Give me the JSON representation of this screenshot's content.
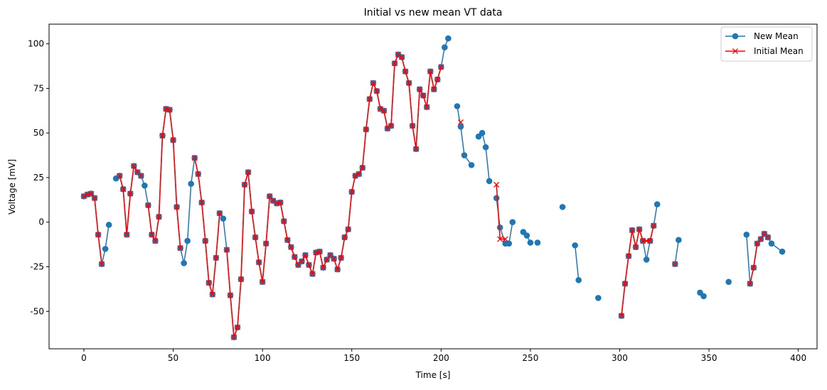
{
  "chart_data": {
    "type": "line",
    "title": "Initial vs new mean VT data",
    "xlabel": "Time [s]",
    "ylabel": "Voltage [mV]",
    "xlim": [
      -19.5,
      410.5
    ],
    "ylim": [
      -71,
      111
    ],
    "xticks": [
      0,
      50,
      100,
      150,
      200,
      250,
      300,
      350,
      400
    ],
    "yticks": [
      -50,
      -25,
      0,
      25,
      50,
      75,
      100
    ],
    "grid": false,
    "legend_position": "top-right",
    "series": [
      {
        "name": "New Mean",
        "color": "#1f77b4",
        "marker": "circle",
        "segments": [
          [
            [
              0,
              14.5
            ],
            [
              2,
              15.5
            ],
            [
              4,
              16
            ],
            [
              6,
              13.5
            ],
            [
              8,
              -7
            ],
            [
              10,
              -23.5
            ],
            [
              12,
              -15
            ],
            [
              14,
              -1.5
            ]
          ],
          [
            [
              18,
              24.5
            ],
            [
              20,
              26
            ],
            [
              22,
              18.5
            ],
            [
              24,
              -7
            ],
            [
              26,
              16
            ],
            [
              28,
              31.5
            ],
            [
              30,
              28
            ],
            [
              32,
              26
            ],
            [
              34,
              20.5
            ],
            [
              36,
              9.5
            ],
            [
              38,
              -7
            ],
            [
              40,
              -10.5
            ],
            [
              42,
              3
            ],
            [
              44,
              48.5
            ],
            [
              46,
              63.5
            ],
            [
              48,
              63
            ],
            [
              50,
              46
            ],
            [
              52,
              8.5
            ],
            [
              54,
              -14.5
            ],
            [
              56,
              -23
            ],
            [
              58,
              -10.5
            ],
            [
              60,
              21.5
            ],
            [
              62,
              36
            ],
            [
              64,
              27
            ],
            [
              66,
              11
            ],
            [
              68,
              -10.5
            ],
            [
              70,
              -34
            ],
            [
              72,
              -40.5
            ],
            [
              74,
              -20
            ],
            [
              76,
              5
            ],
            [
              78,
              2
            ],
            [
              80,
              -15.5
            ],
            [
              82,
              -41
            ],
            [
              84,
              -64.5
            ],
            [
              86,
              -59
            ],
            [
              88,
              -32
            ],
            [
              90,
              21
            ],
            [
              92,
              28
            ],
            [
              94,
              6
            ],
            [
              96,
              -8.5
            ],
            [
              98,
              -22.5
            ],
            [
              100,
              -33.5
            ],
            [
              102,
              -12
            ],
            [
              104,
              14.5
            ],
            [
              106,
              12
            ],
            [
              108,
              10.5
            ],
            [
              110,
              11
            ],
            [
              112,
              0.5
            ],
            [
              114,
              -10
            ],
            [
              116,
              -14
            ],
            [
              118,
              -19.5
            ],
            [
              120,
              -24
            ],
            [
              122,
              -22
            ],
            [
              124,
              -18.5
            ],
            [
              126,
              -24
            ],
            [
              128,
              -29
            ],
            [
              130,
              -17
            ],
            [
              132,
              -16.5
            ],
            [
              134,
              -25.5
            ],
            [
              136,
              -21
            ],
            [
              138,
              -18.5
            ],
            [
              140,
              -20.5
            ],
            [
              142,
              -26.5
            ],
            [
              144,
              -20
            ],
            [
              146,
              -8.5
            ],
            [
              148,
              -4
            ],
            [
              150,
              17
            ],
            [
              152,
              26
            ],
            [
              154,
              27
            ],
            [
              156,
              30.5
            ],
            [
              158,
              52
            ],
            [
              160,
              69
            ],
            [
              162,
              78
            ],
            [
              164,
              73.5
            ],
            [
              166,
              63.5
            ],
            [
              168,
              62.5
            ],
            [
              170,
              52.5
            ],
            [
              172,
              54
            ],
            [
              174,
              89
            ],
            [
              176,
              94
            ],
            [
              178,
              92.5
            ],
            [
              180,
              84.5
            ],
            [
              182,
              78
            ],
            [
              184,
              54
            ],
            [
              186,
              41
            ],
            [
              188,
              74.5
            ],
            [
              190,
              71
            ],
            [
              192,
              64.5
            ],
            [
              194,
              84.5
            ],
            [
              196,
              74.5
            ],
            [
              198,
              80
            ],
            [
              200,
              87
            ],
            [
              202,
              98
            ],
            [
              204,
              103
            ]
          ],
          [
            [
              209,
              65
            ],
            [
              211,
              53.5
            ],
            [
              213,
              37.5
            ],
            [
              217,
              32
            ]
          ],
          [
            [
              221,
              48
            ],
            [
              223,
              50
            ],
            [
              225,
              42
            ],
            [
              227,
              23
            ]
          ],
          [
            [
              231,
              13.5
            ],
            [
              233,
              -3
            ],
            [
              236,
              -12
            ],
            [
              238,
              -12
            ],
            [
              240,
              0
            ]
          ],
          [
            [
              246,
              -5.5
            ],
            [
              248,
              -7.5
            ],
            [
              250,
              -11.5
            ]
          ],
          [
            [
              254,
              -11.5
            ]
          ],
          [
            [
              268,
              8.5
            ]
          ],
          [
            [
              275,
              -13
            ],
            [
              277,
              -32.5
            ]
          ],
          [
            [
              288,
              -42.5
            ]
          ],
          [
            [
              301,
              -52.5
            ],
            [
              303,
              -34.5
            ],
            [
              305,
              -19
            ],
            [
              307,
              -4.5
            ],
            [
              309,
              -14
            ],
            [
              311,
              -4
            ],
            [
              313,
              -10.5
            ],
            [
              315,
              -21
            ],
            [
              317,
              -10.5
            ],
            [
              319,
              -2
            ],
            [
              321,
              10
            ]
          ],
          [
            [
              331,
              -23.5
            ],
            [
              333,
              -10
            ]
          ],
          [
            [
              345,
              -39.5
            ],
            [
              347,
              -41.5
            ]
          ],
          [
            [
              361,
              -33.5
            ]
          ],
          [
            [
              371,
              -7
            ],
            [
              373,
              -34.5
            ],
            [
              375,
              -25.5
            ],
            [
              377,
              -12
            ],
            [
              379,
              -9.5
            ],
            [
              381,
              -6.5
            ],
            [
              383,
              -8.5
            ],
            [
              385,
              -12
            ],
            [
              391,
              -16.5
            ]
          ]
        ]
      },
      {
        "name": "Initial Mean",
        "color": "#ff0000",
        "marker": "x",
        "segments": [
          [
            [
              0,
              14.5
            ],
            [
              2,
              15.5
            ],
            [
              4,
              16
            ],
            [
              6,
              13.5
            ],
            [
              8,
              -7
            ],
            [
              10,
              -23.5
            ]
          ],
          [
            [
              20,
              26
            ],
            [
              22,
              18.5
            ],
            [
              24,
              -7
            ],
            [
              26,
              16
            ],
            [
              28,
              31.5
            ],
            [
              30,
              28
            ],
            [
              32,
              26
            ]
          ],
          [
            [
              36,
              9.5
            ],
            [
              38,
              -7
            ],
            [
              40,
              -10.5
            ],
            [
              42,
              3
            ],
            [
              44,
              48.5
            ],
            [
              46,
              63.5
            ],
            [
              48,
              63
            ],
            [
              50,
              46
            ],
            [
              52,
              8.5
            ],
            [
              54,
              -14.5
            ]
          ],
          [
            [
              62,
              36
            ],
            [
              64,
              27
            ],
            [
              66,
              11
            ],
            [
              68,
              -10.5
            ],
            [
              70,
              -34
            ],
            [
              72,
              -40.5
            ],
            [
              74,
              -20
            ],
            [
              76,
              5
            ]
          ],
          [
            [
              80,
              -15.5
            ],
            [
              82,
              -41
            ],
            [
              84,
              -64.5
            ],
            [
              86,
              -59
            ],
            [
              88,
              -32
            ],
            [
              90,
              21
            ],
            [
              92,
              28
            ],
            [
              94,
              6
            ],
            [
              96,
              -8.5
            ],
            [
              98,
              -22.5
            ],
            [
              100,
              -33.5
            ],
            [
              102,
              -12
            ],
            [
              104,
              14.5
            ],
            [
              106,
              12
            ],
            [
              108,
              10.5
            ],
            [
              110,
              11
            ],
            [
              112,
              0.5
            ],
            [
              114,
              -10
            ],
            [
              116,
              -14
            ],
            [
              118,
              -19.5
            ],
            [
              120,
              -24
            ],
            [
              122,
              -22
            ],
            [
              124,
              -18.5
            ],
            [
              126,
              -24
            ],
            [
              128,
              -29
            ],
            [
              130,
              -17
            ],
            [
              132,
              -16.5
            ],
            [
              134,
              -25.5
            ],
            [
              136,
              -21
            ],
            [
              138,
              -18.5
            ],
            [
              140,
              -20.5
            ],
            [
              142,
              -26.5
            ],
            [
              144,
              -20
            ],
            [
              146,
              -8.5
            ],
            [
              148,
              -4
            ],
            [
              150,
              17
            ],
            [
              152,
              26
            ],
            [
              154,
              27
            ],
            [
              156,
              30.5
            ],
            [
              158,
              52
            ],
            [
              160,
              69
            ],
            [
              162,
              78
            ],
            [
              164,
              73.5
            ],
            [
              166,
              63.5
            ],
            [
              168,
              62.5
            ],
            [
              170,
              52.5
            ],
            [
              172,
              54
            ],
            [
              174,
              89
            ],
            [
              176,
              94
            ],
            [
              178,
              92.5
            ],
            [
              180,
              84.5
            ],
            [
              182,
              78
            ],
            [
              184,
              54
            ],
            [
              186,
              41
            ],
            [
              188,
              74.5
            ],
            [
              190,
              71
            ],
            [
              192,
              64.5
            ],
            [
              194,
              84.5
            ],
            [
              196,
              74.5
            ],
            [
              198,
              80
            ],
            [
              200,
              87
            ]
          ],
          [
            [
              211,
              56
            ]
          ],
          [
            [
              231,
              21
            ],
            [
              233,
              -9.5
            ],
            [
              236,
              -9.5
            ]
          ],
          [
            [
              301,
              -52.5
            ],
            [
              303,
              -34.5
            ],
            [
              305,
              -19
            ],
            [
              307,
              -4.5
            ],
            [
              309,
              -14
            ],
            [
              311,
              -4
            ],
            [
              313,
              -10.5
            ],
            [
              315,
              -10.5
            ],
            [
              317,
              -10.5
            ],
            [
              319,
              -2
            ]
          ],
          [
            [
              331,
              -23.5
            ]
          ],
          [
            [
              373,
              -34.5
            ],
            [
              375,
              -25.5
            ],
            [
              377,
              -12
            ],
            [
              379,
              -9.5
            ],
            [
              381,
              -6.5
            ],
            [
              383,
              -8.5
            ]
          ]
        ]
      }
    ]
  }
}
